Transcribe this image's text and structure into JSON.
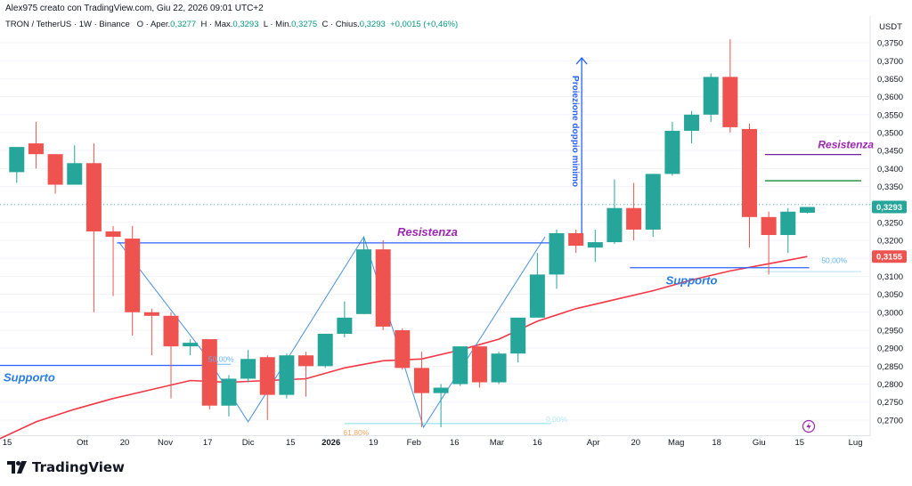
{
  "header": {
    "author_line": "Alex975 creato con TradingView.com, Giu 22, 2026 09:01 UTC+2",
    "symbol": "TRON / TetherUS · 1W · Binance",
    "ohlc": {
      "open_label": "O",
      "open_name": "Aper.",
      "open_value": "0,3277",
      "high_label": "H",
      "high_name": "Max.",
      "high_value": "0,3293",
      "low_label": "L",
      "low_name": "Min.",
      "low_value": "0,3275",
      "close_label": "C",
      "close_name": "Chius.",
      "close_value": "0,3293",
      "change": "+0,0015 (+0,46%)"
    }
  },
  "footer": {
    "brand": "TradingView"
  },
  "colors": {
    "bull": "#26a69a",
    "bear": "#ef5350",
    "ma": "#f23645",
    "blue": "#2962ff",
    "purple": "#9c27b0",
    "green": "#1b8a3a",
    "purple_line": "#7b1fa2",
    "fib_orange": "#f7a35c",
    "fib_teal": "#80deea"
  },
  "chart_data": {
    "type": "candlestick",
    "interval": "1W",
    "quote_currency": "USDT",
    "y_axis": {
      "ylim": [
        0.2665,
        0.377
      ],
      "ticks": [
        "0,2700",
        "0,2750",
        "0,2800",
        "0,2850",
        "0,2900",
        "0,2950",
        "0,3000",
        "0,3050",
        "0,3100",
        "0,3150",
        "0,3200",
        "0,3250",
        "0,3300",
        "0,3350",
        "0,3400",
        "0,3450",
        "0,3500",
        "0,3550",
        "0,3600",
        "0,3650",
        "0,3700",
        "0,3750"
      ],
      "price_tags": [
        {
          "label": "0,3293",
          "value": 0.3293,
          "kind": "last"
        },
        {
          "label": "0,3155",
          "value": 0.3155,
          "kind": "ma"
        }
      ]
    },
    "x_axis": {
      "ticks": [
        {
          "label": "15",
          "index": -0.7,
          "bold": false
        },
        {
          "label": "Ott",
          "index": 3.4,
          "bold": false
        },
        {
          "label": "20",
          "index": 5.6,
          "bold": false
        },
        {
          "label": "Nov",
          "index": 7.7,
          "bold": false
        },
        {
          "label": "17",
          "index": 9.9,
          "bold": false
        },
        {
          "label": "Dic",
          "index": 12.0,
          "bold": false
        },
        {
          "label": "15",
          "index": 14.2,
          "bold": false
        },
        {
          "label": "2026",
          "index": 16.3,
          "bold": true
        },
        {
          "label": "19",
          "index": 18.5,
          "bold": false
        },
        {
          "label": "Feb",
          "index": 20.6,
          "bold": false
        },
        {
          "label": "16",
          "index": 22.7,
          "bold": false
        },
        {
          "label": "Mar",
          "index": 24.9,
          "bold": false
        },
        {
          "label": "16",
          "index": 27.0,
          "bold": false
        },
        {
          "label": "Apr",
          "index": 29.9,
          "bold": false
        },
        {
          "label": "20",
          "index": 32.1,
          "bold": false
        },
        {
          "label": "Mag",
          "index": 34.2,
          "bold": false
        },
        {
          "label": "18",
          "index": 36.3,
          "bold": false
        },
        {
          "label": "Giu",
          "index": 38.5,
          "bold": false
        },
        {
          "label": "15",
          "index": 40.6,
          "bold": false
        },
        {
          "label": "Lug",
          "index": 43.5,
          "bold": false
        }
      ]
    },
    "candles": [
      {
        "o": 0.339,
        "h": 0.346,
        "l": 0.336,
        "c": 0.346
      },
      {
        "o": 0.347,
        "h": 0.353,
        "l": 0.34,
        "c": 0.344
      },
      {
        "o": 0.344,
        "h": 0.344,
        "l": 0.333,
        "c": 0.3355
      },
      {
        "o": 0.3355,
        "h": 0.3465,
        "l": 0.3355,
        "c": 0.3415
      },
      {
        "o": 0.3415,
        "h": 0.347,
        "l": 0.3,
        "c": 0.3225
      },
      {
        "o": 0.3225,
        "h": 0.324,
        "l": 0.3045,
        "c": 0.321
      },
      {
        "o": 0.3205,
        "h": 0.324,
        "l": 0.2935,
        "c": 0.3
      },
      {
        "o": 0.3,
        "h": 0.301,
        "l": 0.288,
        "c": 0.299
      },
      {
        "o": 0.299,
        "h": 0.3,
        "l": 0.276,
        "c": 0.2905
      },
      {
        "o": 0.2905,
        "h": 0.2925,
        "l": 0.288,
        "c": 0.2915
      },
      {
        "o": 0.2925,
        "h": 0.2925,
        "l": 0.273,
        "c": 0.274
      },
      {
        "o": 0.274,
        "h": 0.2825,
        "l": 0.271,
        "c": 0.2815
      },
      {
        "o": 0.2815,
        "h": 0.2895,
        "l": 0.2805,
        "c": 0.287
      },
      {
        "o": 0.2875,
        "h": 0.288,
        "l": 0.27,
        "c": 0.277
      },
      {
        "o": 0.277,
        "h": 0.2885,
        "l": 0.276,
        "c": 0.288
      },
      {
        "o": 0.288,
        "h": 0.289,
        "l": 0.2765,
        "c": 0.285
      },
      {
        "o": 0.285,
        "h": 0.293,
        "l": 0.2845,
        "c": 0.294
      },
      {
        "o": 0.294,
        "h": 0.303,
        "l": 0.293,
        "c": 0.2985
      },
      {
        "o": 0.2995,
        "h": 0.321,
        "l": 0.2995,
        "c": 0.3175
      },
      {
        "o": 0.3175,
        "h": 0.32,
        "l": 0.295,
        "c": 0.296
      },
      {
        "o": 0.295,
        "h": 0.2955,
        "l": 0.284,
        "c": 0.2845
      },
      {
        "o": 0.2845,
        "h": 0.289,
        "l": 0.268,
        "c": 0.2775
      },
      {
        "o": 0.2775,
        "h": 0.28,
        "l": 0.268,
        "c": 0.279
      },
      {
        "o": 0.28,
        "h": 0.2905,
        "l": 0.2795,
        "c": 0.2905
      },
      {
        "o": 0.2905,
        "h": 0.2905,
        "l": 0.279,
        "c": 0.2805
      },
      {
        "o": 0.2805,
        "h": 0.289,
        "l": 0.28,
        "c": 0.2885
      },
      {
        "o": 0.2885,
        "h": 0.2985,
        "l": 0.286,
        "c": 0.2985
      },
      {
        "o": 0.2985,
        "h": 0.3165,
        "l": 0.2985,
        "c": 0.3105
      },
      {
        "o": 0.3105,
        "h": 0.323,
        "l": 0.3065,
        "c": 0.322
      },
      {
        "o": 0.322,
        "h": 0.323,
        "l": 0.3165,
        "c": 0.3185
      },
      {
        "o": 0.318,
        "h": 0.323,
        "l": 0.314,
        "c": 0.3195
      },
      {
        "o": 0.3195,
        "h": 0.337,
        "l": 0.319,
        "c": 0.329
      },
      {
        "o": 0.329,
        "h": 0.336,
        "l": 0.32,
        "c": 0.323
      },
      {
        "o": 0.323,
        "h": 0.3385,
        "l": 0.321,
        "c": 0.3385
      },
      {
        "o": 0.3385,
        "h": 0.353,
        "l": 0.338,
        "c": 0.3505
      },
      {
        "o": 0.3505,
        "h": 0.356,
        "l": 0.347,
        "c": 0.355
      },
      {
        "o": 0.355,
        "h": 0.3665,
        "l": 0.353,
        "c": 0.3655
      },
      {
        "o": 0.3655,
        "h": 0.376,
        "l": 0.35,
        "c": 0.3515
      },
      {
        "o": 0.351,
        "h": 0.3525,
        "l": 0.318,
        "c": 0.3265
      },
      {
        "o": 0.3265,
        "h": 0.328,
        "l": 0.3105,
        "c": 0.3215
      },
      {
        "o": 0.3215,
        "h": 0.329,
        "l": 0.3165,
        "c": 0.328
      },
      {
        "o": 0.3277,
        "h": 0.3293,
        "l": 0.3275,
        "c": 0.3293
      }
    ],
    "moving_average": {
      "points": [
        [
          -1,
          0.2645
        ],
        [
          1,
          0.2695
        ],
        [
          3,
          0.273
        ],
        [
          5,
          0.276
        ],
        [
          7,
          0.2785
        ],
        [
          9,
          0.281
        ],
        [
          11,
          0.2805
        ],
        [
          13,
          0.281
        ],
        [
          15,
          0.2815
        ],
        [
          17,
          0.2845
        ],
        [
          19,
          0.2865
        ],
        [
          21,
          0.287
        ],
        [
          23,
          0.2895
        ],
        [
          25,
          0.2925
        ],
        [
          27,
          0.2975
        ],
        [
          29,
          0.301
        ],
        [
          31,
          0.3035
        ],
        [
          33,
          0.306
        ],
        [
          35,
          0.309
        ],
        [
          37,
          0.3115
        ],
        [
          39,
          0.3135
        ],
        [
          40,
          0.3145
        ],
        [
          41,
          0.3155
        ]
      ]
    },
    "annotations": {
      "resistance_line": {
        "label": "Resistenza",
        "value": 0.3193,
        "from": 5.2,
        "to": 27.7
      },
      "support_line_left": {
        "label": "Supporto",
        "value": 0.2852,
        "from": -1.0,
        "to": 10.0
      },
      "support_line_right": {
        "label": "Supporto",
        "value": 0.3124,
        "from": 31.8,
        "to": 41.1
      },
      "projection_arrow": {
        "label": "Proiezione doppio minimo",
        "index": 29.3,
        "from": 0.321,
        "to": 0.3708
      },
      "resistance_right": {
        "label": "Resistenza",
        "value": 0.3439,
        "from": 38.8,
        "to": 43.8
      },
      "green_level": {
        "value": 0.3366,
        "from": 38.8,
        "to": 43.8
      },
      "fib_left": [
        {
          "label": "50,00%",
          "value": 0.2855,
          "from": 9.6,
          "to": 11.1
        },
        {
          "label": "61,80%",
          "value": 0.269,
          "from": 17.0,
          "to": 27.7
        },
        {
          "label": "0,00%",
          "value": 0.269,
          "from": 17.0,
          "to": 27.7
        }
      ],
      "fib_right": [
        {
          "label": "50,00%",
          "value": 0.3129,
          "from": 31.8,
          "to": 43.8
        },
        {
          "label": "",
          "value": 0.3113,
          "from": 38.8,
          "to": 43.8
        }
      ],
      "double_bottom_path": [
        [
          5.3,
          0.3195
        ],
        [
          9.8,
          0.288
        ],
        [
          12.0,
          0.2695
        ],
        [
          18.0,
          0.321
        ],
        [
          21.1,
          0.268
        ],
        [
          27.4,
          0.321
        ]
      ],
      "dotted_level": {
        "value": 0.33
      }
    }
  }
}
